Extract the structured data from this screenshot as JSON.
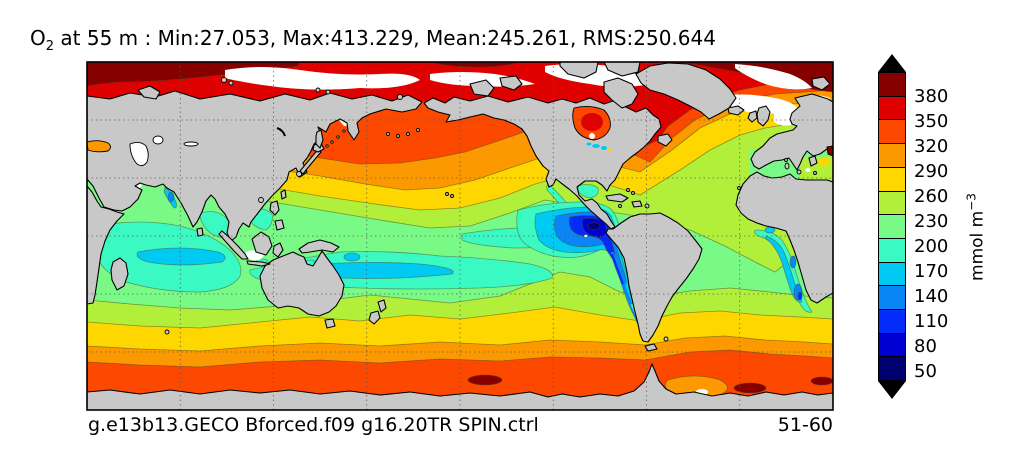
{
  "title": {
    "var": "O",
    "sub": "2",
    "rest": " at 55 m : Min:27.053, Max:413.229, Mean:245.261, RMS:250.644"
  },
  "stats": {
    "min": "27.053",
    "max": "413.229",
    "mean": "245.261",
    "rms": "250.644"
  },
  "depth": "55 m",
  "colorbar": {
    "ticks": [
      "380",
      "350",
      "320",
      "290",
      "260",
      "230",
      "200",
      "170",
      "140",
      "110",
      "80",
      "50"
    ],
    "unit": {
      "text": "mmol m",
      "sup": "−3"
    },
    "palette_top_to_bottom": [
      "#860000",
      "#df0000",
      "#fd4900",
      "#fd9900",
      "#ffd700",
      "#b2ef3a",
      "#79fa86",
      "#3bf9c3",
      "#00c9f2",
      "#0a85f5",
      "#032cfb",
      "#0000d2",
      "#00006e"
    ],
    "extend_arrow_color": "#000000"
  },
  "footer": {
    "left": "g.e13b13.GECO Bforced.f09 g16.20TR SPIN.ctrl",
    "right": "51-60"
  },
  "map": {
    "land_color": "#c8c8c8",
    "coast_color": "#000000",
    "ocean_base_color": "#79fa86",
    "gridline_style": "dashed gray, every 45° longitude / 30° latitude"
  },
  "chart_data": {
    "type": "heatmap",
    "title": "O2 at 55 m : Min:27.053, Max:413.229, Mean:245.261, RMS:250.644",
    "variable": "Dissolved oxygen concentration at 55 m depth",
    "units": "mmol m^-3",
    "stats": {
      "min": 27.053,
      "max": 413.229,
      "mean": 245.261,
      "rms": 250.644
    },
    "contour_levels": [
      50,
      80,
      110,
      140,
      170,
      200,
      230,
      260,
      290,
      320,
      350,
      380
    ],
    "palette_low_to_high": [
      "#00006e",
      "#0000d2",
      "#032cfb",
      "#0a85f5",
      "#00c9f2",
      "#3bf9c3",
      "#79fa86",
      "#b2ef3a",
      "#ffd700",
      "#fd9900",
      "#fd4900",
      "#df0000",
      "#860000"
    ],
    "colorbar_extend": "both (black triangles top and bottom)",
    "projection": "global equirectangular world map, Pacific-centered (left edge near 30E)",
    "legend_position": "vertical colorbar at right",
    "grid": true,
    "run_label": "g.e13b13.GECO Bforced.f09 g16.20TR SPIN.ctrl",
    "time_average_years": "51-60",
    "notable_features": [
      "High O2 (>350) across Arctic and Southern Ocean high latitudes",
      "Zonal yellow/orange bands in mid-latitudes of both hemispheres",
      "Low-O2 core (<50) in eastern tropical Pacific off Peru/Central America",
      "Low-O2 strip along southwest African coast",
      "Gray continents, white no-data/ice patches near poles and shallow seas"
    ]
  }
}
